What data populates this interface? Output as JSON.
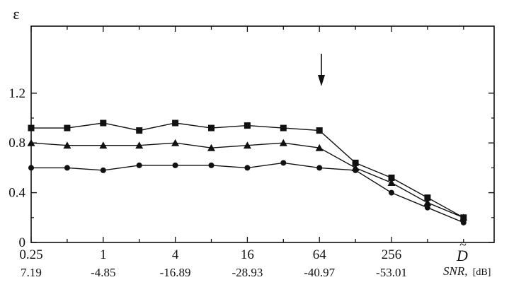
{
  "chart_data": {
    "type": "line",
    "ylabel": "ε",
    "ylim": [
      0,
      1.4
    ],
    "yticks": [
      "0",
      "0.4",
      "0.8",
      "1.2"
    ],
    "ytick_values": [
      0,
      0.4,
      0.8,
      1.2
    ],
    "x_positions": [
      0.25,
      0.5,
      1,
      2,
      4,
      8,
      16,
      32,
      64,
      128,
      256,
      512,
      1024
    ],
    "xticks_top": [
      "0.25",
      "1",
      "4",
      "16",
      "64",
      "256"
    ],
    "xticks_top_values": [
      0.25,
      1,
      4,
      16,
      64,
      256
    ],
    "last_tick_label": "D",
    "xticks_snr": [
      "7.19",
      "-4.85",
      "-16.89",
      "-28.93",
      "-40.97",
      "-53.01"
    ],
    "xlabel_snr": "SNR,",
    "xlabel_snr_unit": "[dB]",
    "xscale": "log2",
    "grid": false,
    "annotation": "arrow above x = 64",
    "series": [
      {
        "marker": "square",
        "values": [
          0.92,
          0.92,
          0.96,
          0.9,
          0.96,
          0.92,
          0.94,
          0.92,
          0.9,
          0.64,
          0.52,
          0.36,
          0.2
        ]
      },
      {
        "marker": "triangle",
        "values": [
          0.8,
          0.78,
          0.78,
          0.78,
          0.8,
          0.76,
          0.78,
          0.8,
          0.76,
          0.6,
          0.48,
          0.32,
          0.2
        ]
      },
      {
        "marker": "circle",
        "values": [
          0.6,
          0.6,
          0.58,
          0.62,
          0.62,
          0.62,
          0.6,
          0.64,
          0.6,
          0.58,
          0.4,
          0.28,
          0.16
        ]
      }
    ]
  }
}
